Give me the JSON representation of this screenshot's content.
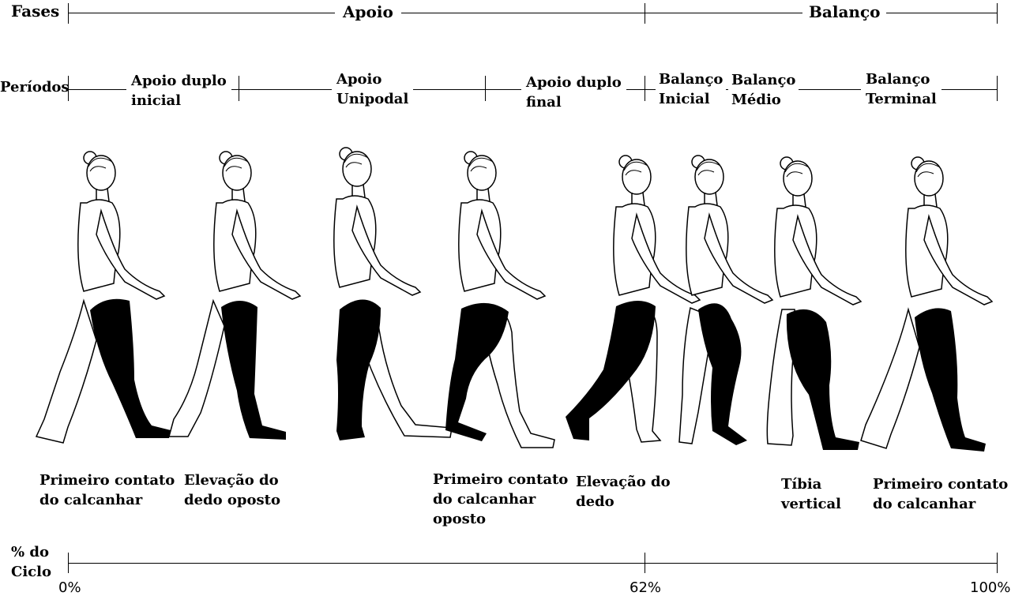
{
  "phases": {
    "label": "Fases",
    "stance": "Apoio",
    "swing": "Balanço"
  },
  "periods": {
    "label": "Períodos",
    "items": [
      "Apoio duplo\ninicial",
      "Apoio\nUnipodal",
      "Apoio duplo\nfinal",
      "Balanço\nInicial",
      "Balanço\nMédio",
      "Balanço\nTerminal"
    ]
  },
  "events": [
    "Primeiro contato\ndo calcanhar",
    "Elevação do\ndedo oposto",
    "Primeiro contato\ndo calcanhar\noposto",
    "Elevação do\ndedo",
    "Tíbia\nvertical",
    "Primeiro contato\ndo calcanhar"
  ],
  "cycle": {
    "label": "% do\nCiclo",
    "start": "0%",
    "mid": "62%",
    "end": "100%"
  },
  "figures": {
    "count": 8,
    "shaded_leg_color": "#000000",
    "outline_color": "#000000"
  }
}
